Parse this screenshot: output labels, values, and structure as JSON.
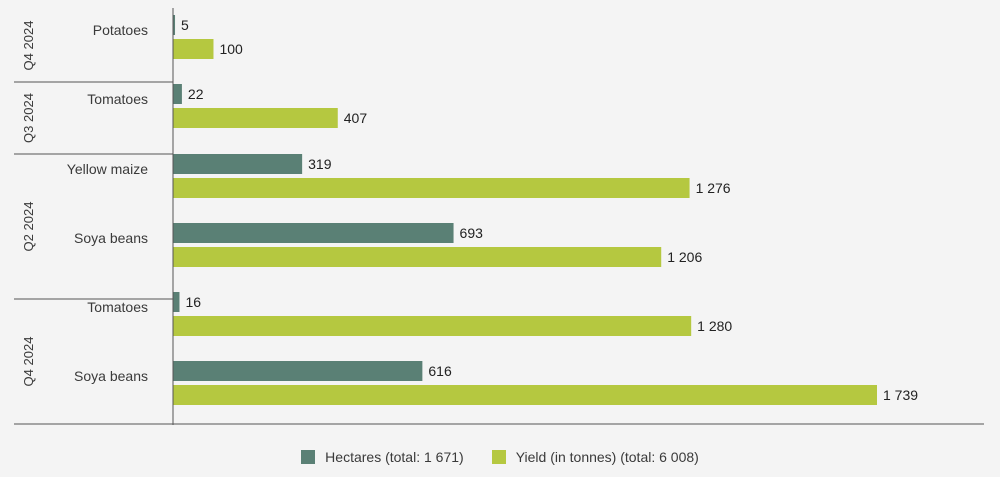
{
  "colors": {
    "hectares": "#5a8075",
    "yield": "#b5c840",
    "axis": "#555555",
    "background": "#f4f4f4"
  },
  "chart_data": {
    "type": "bar",
    "orientation": "horizontal",
    "groups": [
      {
        "label": "Q4 2024",
        "categories": [
          "Potatoes"
        ]
      },
      {
        "label": "Q3 2024",
        "categories": [
          "Tomatoes"
        ]
      },
      {
        "label": "Q2 2024",
        "categories": [
          "Yellow maize",
          "Soya beans"
        ]
      },
      {
        "label": "Q4 2024",
        "categories": [
          "Tomatoes",
          "Soya beans"
        ]
      }
    ],
    "categories": [
      "Potatoes",
      "Tomatoes",
      "Yellow maize",
      "Soya beans",
      "Tomatoes",
      "Soya beans"
    ],
    "series": [
      {
        "name": "Hectares (total: 1 671)",
        "values": [
          5,
          22,
          319,
          693,
          16,
          616
        ],
        "labels": [
          "5",
          "22",
          "319",
          "693",
          "16",
          "616"
        ]
      },
      {
        "name": "Yield (in tonnes) (total: 6 008)",
        "values": [
          100,
          407,
          1276,
          1206,
          1280,
          1739
        ],
        "labels": [
          "100",
          "407",
          "1 276",
          "1 206",
          "1 280",
          "1 739"
        ]
      }
    ],
    "xlim": [
      0,
      2000
    ],
    "grid": false,
    "legend_position": "bottom"
  }
}
